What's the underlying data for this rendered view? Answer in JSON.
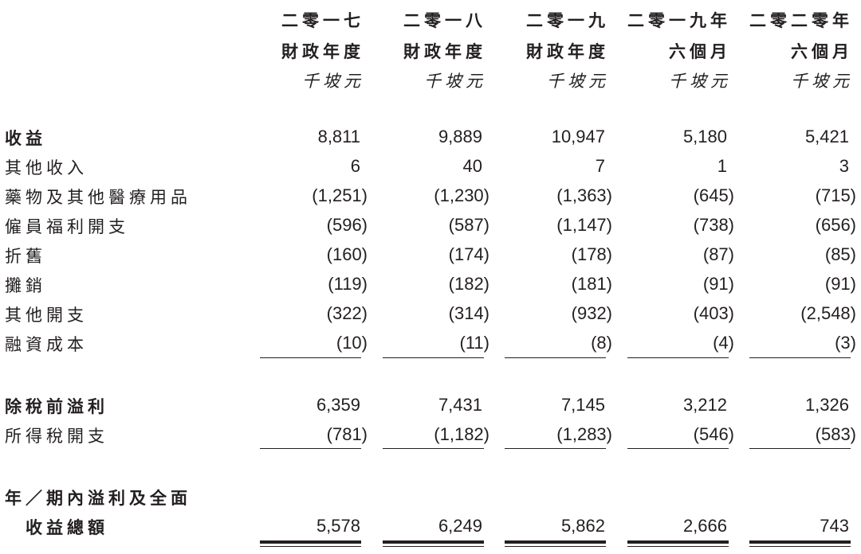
{
  "columns": [
    {
      "line1": "二零一七",
      "line2": "財政年度",
      "unit": "千坡元"
    },
    {
      "line1": "二零一八",
      "line2": "財政年度",
      "unit": "千坡元"
    },
    {
      "line1": "二零一九",
      "line2": "財政年度",
      "unit": "千坡元"
    },
    {
      "line1": "二零一九年",
      "line2": "六個月",
      "unit": "千坡元"
    },
    {
      "line1": "二零二零年",
      "line2": "六個月",
      "unit": "千坡元"
    }
  ],
  "rows": [
    {
      "label": "收益",
      "bold": true,
      "values": [
        "8,811",
        "9,889",
        "10,947",
        "5,180",
        "5,421"
      ]
    },
    {
      "label": "其他收入",
      "values": [
        "6",
        "40",
        "7",
        "1",
        "3"
      ]
    },
    {
      "label": "藥物及其他醫療用品",
      "values": [
        "(1,251)",
        "(1,230)",
        "(1,363)",
        "(645)",
        "(715)"
      ]
    },
    {
      "label": "僱員福利開支",
      "values": [
        "(596)",
        "(587)",
        "(1,147)",
        "(738)",
        "(656)"
      ]
    },
    {
      "label": "折舊",
      "values": [
        "(160)",
        "(174)",
        "(178)",
        "(87)",
        "(85)"
      ]
    },
    {
      "label": "攤銷",
      "values": [
        "(119)",
        "(182)",
        "(181)",
        "(91)",
        "(91)"
      ]
    },
    {
      "label": "其他開支",
      "values": [
        "(322)",
        "(314)",
        "(932)",
        "(403)",
        "(2,548)"
      ]
    },
    {
      "label": "融資成本",
      "values": [
        "(10)",
        "(11)",
        "(8)",
        "(4)",
        "(3)"
      ]
    },
    {
      "label": "除稅前溢利",
      "bold": true,
      "values": [
        "6,359",
        "7,431",
        "7,145",
        "3,212",
        "1,326"
      ]
    },
    {
      "label": "所得稅開支",
      "values": [
        "(781)",
        "(1,182)",
        "(1,283)",
        "(546)",
        "(583)"
      ]
    },
    {
      "label": "年／期內溢利及全面",
      "bold": true,
      "values": []
    },
    {
      "label": "　收益總額",
      "bold": true,
      "values": [
        "5,578",
        "6,249",
        "5,862",
        "2,666",
        "743"
      ]
    }
  ]
}
